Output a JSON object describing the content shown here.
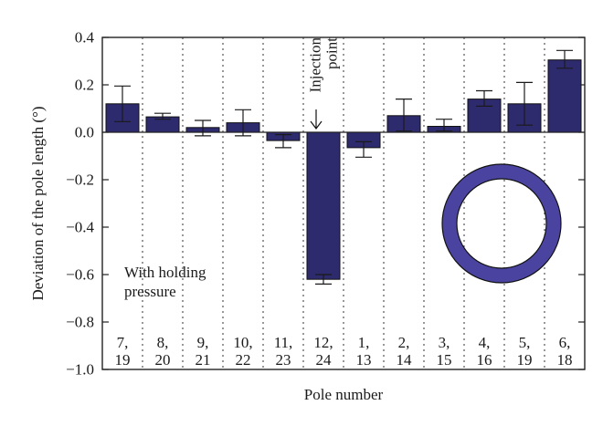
{
  "chart_data": {
    "type": "bar",
    "xlabel": "Pole number",
    "ylabel": "Deviation of the pole length (°)",
    "ylim": [
      -1.0,
      0.4
    ],
    "yticks": [
      "0.4",
      "0.2",
      "0.0",
      "−0.2",
      "−0.4",
      "−0.6",
      "−0.8",
      "−1.0"
    ],
    "ytick_values": [
      0.4,
      0.2,
      0.0,
      -0.2,
      -0.4,
      -0.6,
      -0.8,
      -1.0
    ],
    "categories": [
      {
        "top": "7,",
        "bottom": "19"
      },
      {
        "top": "8,",
        "bottom": "20"
      },
      {
        "top": "9,",
        "bottom": "21"
      },
      {
        "top": "10,",
        "bottom": "22"
      },
      {
        "top": "11,",
        "bottom": "23"
      },
      {
        "top": "12,",
        "bottom": "24"
      },
      {
        "top": "1,",
        "bottom": "13"
      },
      {
        "top": "2,",
        "bottom": "14"
      },
      {
        "top": "3,",
        "bottom": "15"
      },
      {
        "top": "4,",
        "bottom": "16"
      },
      {
        "top": "5,",
        "bottom": "19"
      },
      {
        "top": "6,",
        "bottom": "18"
      }
    ],
    "values": [
      0.12,
      0.065,
      0.02,
      0.04,
      -0.035,
      -0.62,
      -0.065,
      0.07,
      0.025,
      0.14,
      0.12,
      0.305
    ],
    "error_low": [
      0.045,
      0.055,
      -0.015,
      -0.015,
      -0.065,
      -0.64,
      -0.105,
      0.005,
      0.005,
      0.11,
      0.03,
      0.27
    ],
    "error_high": [
      0.195,
      0.08,
      0.05,
      0.095,
      -0.01,
      -0.6,
      -0.04,
      0.14,
      0.055,
      0.175,
      0.21,
      0.345
    ],
    "bar_color": "#2e2a6e",
    "grid": "vertical dotted",
    "annotations": {
      "injection_line1": "Injection",
      "injection_line2": "point",
      "holding_line1": "With holding",
      "holding_line2": "pressure"
    },
    "ring_color": "#4a44a0"
  }
}
